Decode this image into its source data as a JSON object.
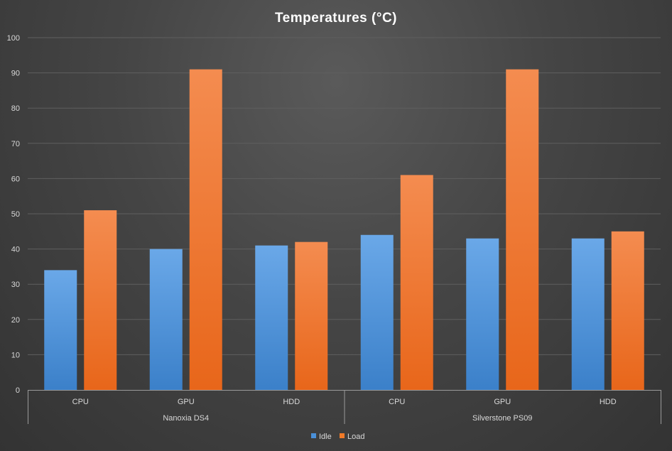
{
  "chart_data": {
    "type": "bar",
    "title": "Temperatures (°C)",
    "groups": [
      {
        "label": "Nanoxia DS4",
        "categories": [
          "CPU",
          "GPU",
          "HDD"
        ]
      },
      {
        "label": "Silverstone PS09",
        "categories": [
          "CPU",
          "GPU",
          "HDD"
        ]
      }
    ],
    "categories": [
      "CPU",
      "GPU",
      "HDD",
      "CPU",
      "GPU",
      "HDD"
    ],
    "series": [
      {
        "name": "Idle",
        "color": "#4a90d9",
        "values": [
          34,
          40,
          41,
          44,
          43,
          43
        ]
      },
      {
        "name": "Load",
        "color": "#f07a28",
        "values": [
          51,
          91,
          42,
          61,
          91,
          45
        ]
      }
    ],
    "ylim": [
      0,
      100
    ],
    "yticks": [
      0,
      10,
      20,
      30,
      40,
      50,
      60,
      70,
      80,
      90,
      100
    ],
    "grid": true,
    "legend": "bottom-center"
  }
}
